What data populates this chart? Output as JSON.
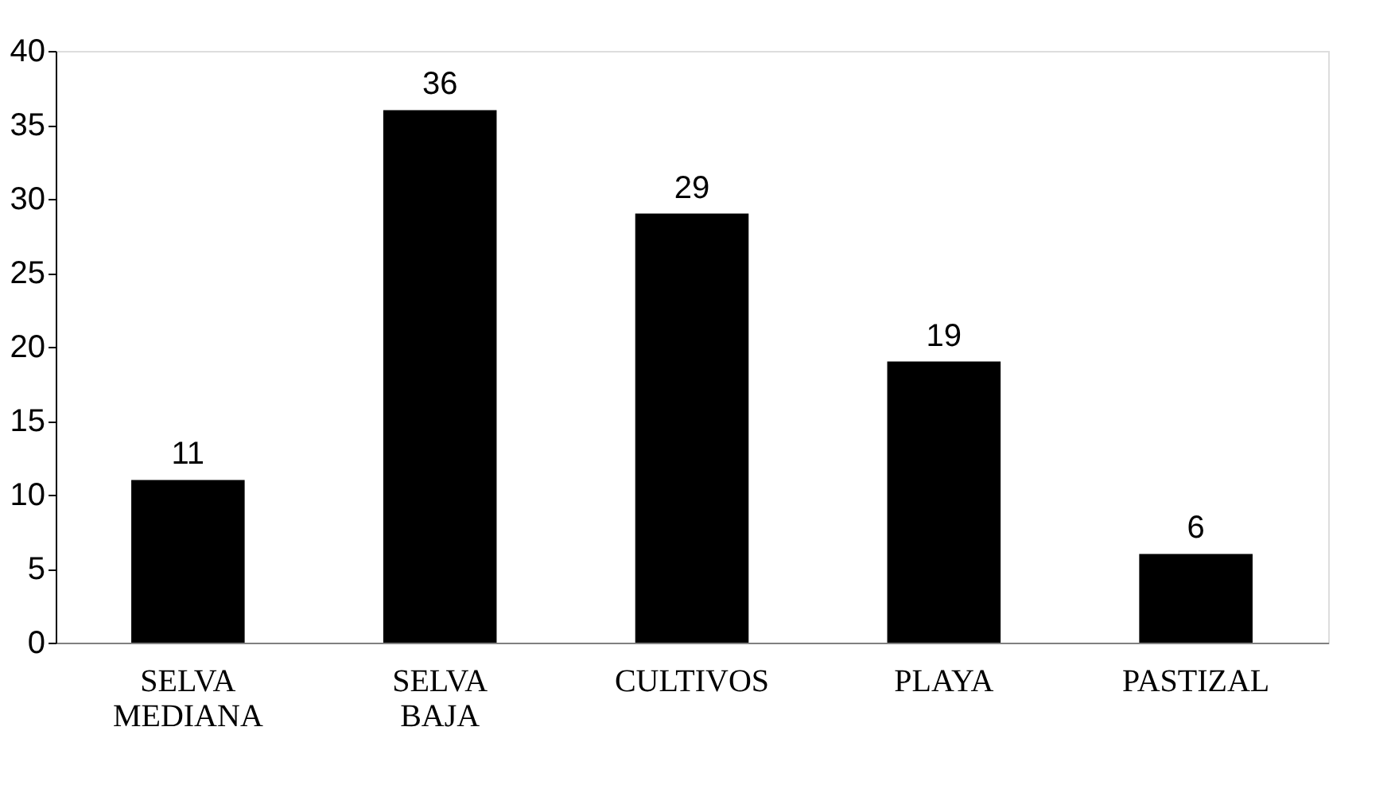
{
  "chart_data": {
    "type": "bar",
    "categories": [
      "SELVA MEDIANA",
      "SELVA BAJA",
      "CULTIVOS",
      "PLAYA",
      "PASTIZAL"
    ],
    "values": [
      11,
      36,
      29,
      19,
      6
    ],
    "color": "#000000",
    "ylim": [
      0,
      40
    ],
    "yticks": [
      0,
      5,
      10,
      15,
      20,
      25,
      30,
      35,
      40
    ],
    "data_labels": true,
    "grid": false
  }
}
